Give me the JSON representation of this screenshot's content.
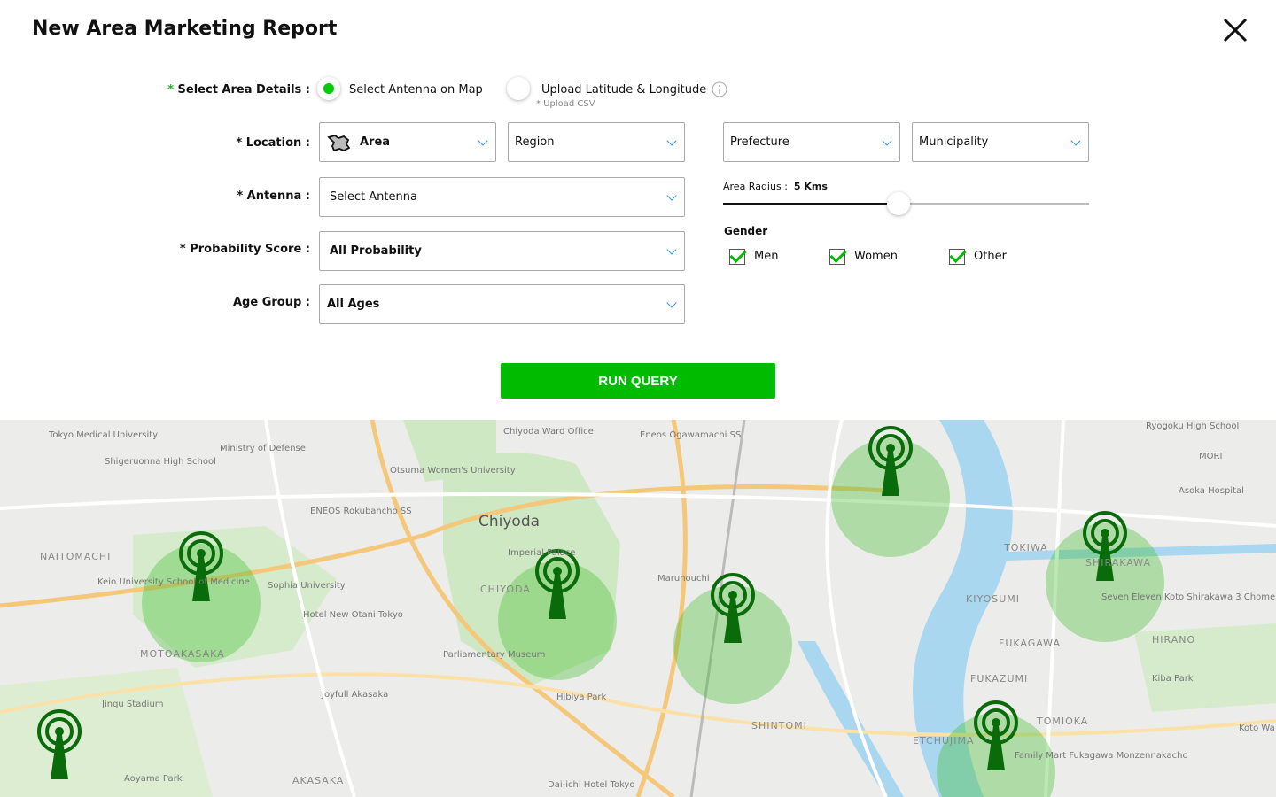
{
  "header": {
    "title": "New Area Marketing Report"
  },
  "form": {
    "area_details": {
      "required": "*",
      "label": "Select Area Details :",
      "option1": "Select Antenna on Map",
      "option1_selected": true,
      "option2": "Upload Latitude & Longitude",
      "option2_hint": "* Upload CSV"
    },
    "location": {
      "label": "* Location :",
      "area": "Area",
      "region": "Region",
      "prefecture": "Prefecture",
      "municipality": "Municipality"
    },
    "antenna": {
      "label": "* Antenna :",
      "value": "Select Antenna"
    },
    "probability": {
      "label": "* Probability Score :",
      "value": "All Probability"
    },
    "age": {
      "label": "Age Group :",
      "value": "All Ages"
    },
    "radius": {
      "label": "Area Radius :",
      "value": "5 Kms",
      "level_percent": 48
    },
    "gender": {
      "label": "Gender",
      "options": [
        {
          "label": "Men",
          "checked": true
        },
        {
          "label": "Women",
          "checked": true
        },
        {
          "label": "Other",
          "checked": true
        }
      ]
    },
    "run_label": "RUN QUERY"
  },
  "colors": {
    "accent": "#00bb00",
    "check": "#00bb00",
    "link": "#2a9be0",
    "antenna": "#0a6b0a"
  },
  "map": {
    "labels": [
      "Tokyo Medical University",
      "Shigeruonna High School",
      "Ministry of Defense",
      "Chiyoda Ward Office",
      "Eneos Ogawamachi SS",
      "Ryogoku High School",
      "MORI",
      "Otsuma Women's University",
      "Chiyoda",
      "ENEOS Rokubancho SS",
      "NAITOMACHI",
      "Keio University School of Medicine",
      "Sophia University",
      "Imperial Palace",
      "CHIYODA",
      "Marunouchi",
      "TOKIWA",
      "SHIRAKAWA",
      "Asoka Hospital",
      "KIYOSUMI",
      "Seven Eleven Koto Shirakawa 3 Chome",
      "Hotel New Otani Tokyo",
      "MOTOAKASAKA",
      "Parliamentary Museum",
      "FUKAGAWA",
      "HIRANO",
      "Joyfull Akasaka",
      "Hibiya Park",
      "FUKAZUMI",
      "Kiba Park",
      "Jingu Stadium",
      "SHINTOMI",
      "TOMIOKA",
      "ETCHUJIMA",
      "Family Mart Fukagawa Monzennakacho",
      "Aoyama Park",
      "AKASAKA",
      "Dai-ichi Hotel Tokyo",
      "Koto Wa"
    ]
  }
}
